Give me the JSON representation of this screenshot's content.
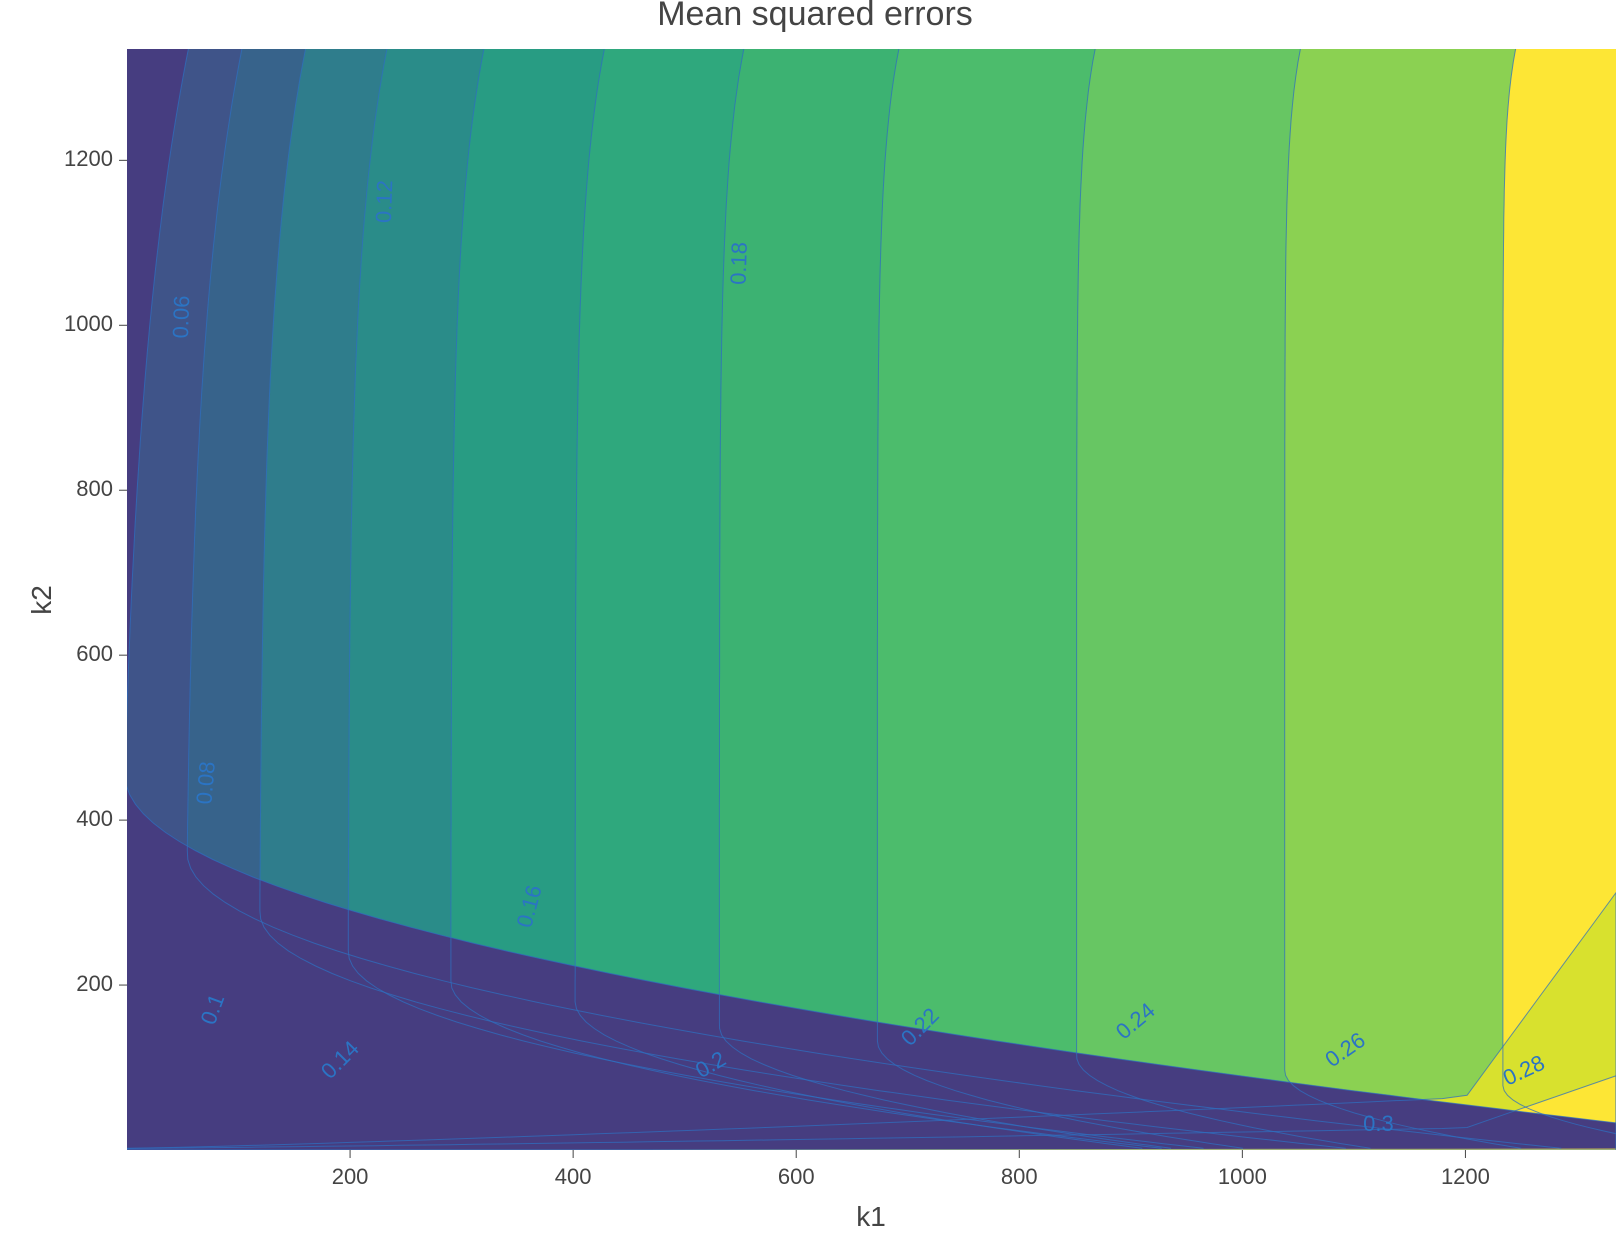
{
  "chart_data": {
    "type": "contour",
    "title": "Mean squared errors",
    "xlabel": "k1",
    "ylabel": "k2",
    "xlim": [
      0,
      1335
    ],
    "ylim": [
      0,
      1335
    ],
    "x_ticks": [
      200,
      400,
      600,
      800,
      1000,
      1200
    ],
    "y_ticks": [
      200,
      400,
      600,
      800,
      1000,
      1200
    ],
    "grid": false,
    "colorscale": "viridis",
    "colors": {
      "line": "#2f6fbf",
      "label": "#2b74c4",
      "fill_min": "#440154",
      "fill_max": "#fde725"
    },
    "levels": [
      0.06,
      0.08,
      0.1,
      0.12,
      0.14,
      0.16,
      0.18,
      0.2,
      0.22,
      0.24,
      0.26,
      0.28,
      0.3
    ],
    "band_colors": [
      "#463d80",
      "#3f5489",
      "#37638b",
      "#2f7d8c",
      "#2a8c89",
      "#289c83",
      "#2fa87d",
      "#3cb272",
      "#4cbc6c",
      "#67c663",
      "#8bd152",
      "#b0da40",
      "#d8e12e",
      "#fde635"
    ],
    "contours": [
      {
        "level": 0.06,
        "x_at_top": 55,
        "bend_k2": 380,
        "low_slope": 6.0
      },
      {
        "level": 0.08,
        "x_at_top": 103,
        "bend_k2": 300,
        "low_slope": 4.8
      },
      {
        "level": 0.1,
        "x_at_top": 160,
        "bend_k2": 240,
        "low_slope": 3.8
      },
      {
        "level": 0.12,
        "x_at_top": 233,
        "bend_k2": 200,
        "low_slope": 3.0
      },
      {
        "level": 0.14,
        "x_at_top": 320,
        "bend_k2": 170,
        "low_slope": 2.5
      },
      {
        "level": 0.16,
        "x_at_top": 428,
        "bend_k2": 150,
        "low_slope": 2.0
      },
      {
        "level": 0.18,
        "x_at_top": 553,
        "bend_k2": 125,
        "low_slope": 1.6
      },
      {
        "level": 0.2,
        "x_at_top": 692,
        "bend_k2": 110,
        "low_slope": 1.3
      },
      {
        "level": 0.22,
        "x_at_top": 868,
        "bend_k2": 95,
        "low_slope": 1.05
      },
      {
        "level": 0.24,
        "x_at_top": 1052,
        "bend_k2": 80,
        "low_slope": 0.85
      },
      {
        "level": 0.26,
        "x_at_top": 1245,
        "bend_k2": 65,
        "low_slope": 0.7
      }
    ],
    "contour_labels": [
      {
        "text": "0.06",
        "k1": 50,
        "k2": 1010,
        "angle": -88
      },
      {
        "text": "0.08",
        "k1": 72,
        "k2": 445,
        "angle": -85
      },
      {
        "text": "0.1",
        "k1": 78,
        "k2": 170,
        "angle": -70
      },
      {
        "text": "0.12",
        "k1": 232,
        "k2": 1150,
        "angle": -88
      },
      {
        "text": "0.14",
        "k1": 192,
        "k2": 108,
        "angle": -45
      },
      {
        "text": "0.16",
        "k1": 362,
        "k2": 295,
        "angle": -75
      },
      {
        "text": "0.18",
        "k1": 550,
        "k2": 1075,
        "angle": -88
      },
      {
        "text": "0.2",
        "k1": 524,
        "k2": 102,
        "angle": -30
      },
      {
        "text": "0.22",
        "k1": 712,
        "k2": 148,
        "angle": -45
      },
      {
        "text": "0.24",
        "k1": 905,
        "k2": 155,
        "angle": -40
      },
      {
        "text": "0.26",
        "k1": 1093,
        "k2": 120,
        "angle": -35
      },
      {
        "text": "0.28",
        "k1": 1253,
        "k2": 95,
        "angle": -25
      },
      {
        "text": "0.3",
        "k1": 1122,
        "k2": 30,
        "angle": 0
      }
    ]
  }
}
